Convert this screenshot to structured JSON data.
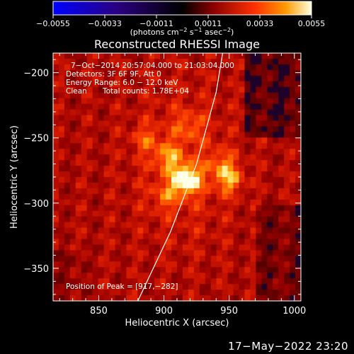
{
  "chart_data": {
    "type": "heatmap",
    "title": "Reconstructed RHESSI Image",
    "xlabel": "Heliocentric X (arcsec)",
    "ylabel": "Heliocentric Y (arcsec)",
    "xlim": [
      815,
      1005
    ],
    "ylim": [
      -375,
      -185
    ],
    "x_ticks": [
      850,
      900,
      950,
      1000
    ],
    "y_ticks": [
      -200,
      -250,
      -300,
      -350
    ],
    "x_tick_labels": [
      "850",
      "900",
      "950",
      "1000"
    ],
    "y_tick_labels": [
      "−200",
      "−250",
      "−300",
      "−350"
    ],
    "colorbar": {
      "label": "(photons cm⁻² s⁻¹ asec⁻²)",
      "label_main": "(photons cm",
      "label_sup1": "−2",
      "label_mid1": " s",
      "label_sup2": "−1",
      "label_mid2": " asec",
      "label_sup3": "−2",
      "label_end": ")",
      "range": [
        -0.0055,
        0.0055
      ],
      "ticks": [
        -0.0055,
        -0.0033,
        -0.0011,
        0.0011,
        0.0033,
        0.0055
      ],
      "tick_labels": [
        "−0.0055",
        "−0.0033",
        "−0.0011",
        "0.0011",
        "0.0033",
        "0.0055"
      ],
      "colors": [
        "#0000ff",
        "#2a0080",
        "#000000",
        "#8b0000",
        "#ff3000",
        "#ff9a00",
        "#ffffe0"
      ]
    },
    "annotations": {
      "time_range": "7−Oct−2014 20:57:04.000 to 21:03:04.000",
      "detectors": "Detectors: 3F 6F 9F, Att 0",
      "energy": "Energy Range: 6.0 − 12.0 keV",
      "method": "Clean",
      "counts": "Total counts: 1.78E+04",
      "peak": "Position of Peak = [917,−282]"
    },
    "peak": [
      917,
      -282
    ],
    "sources": [
      {
        "x": 917,
        "y": -282,
        "intensity": 1.0
      },
      {
        "x": 950,
        "y": -282,
        "intensity": 0.55
      },
      {
        "x": 903,
        "y": -265,
        "intensity": 0.45
      },
      {
        "x": 886,
        "y": -251,
        "intensity": 0.3
      },
      {
        "x": 919,
        "y": -241,
        "intensity": 0.3
      },
      {
        "x": 944,
        "y": -270,
        "intensity": 0.35
      },
      {
        "x": 901,
        "y": -295,
        "intensity": 0.3
      }
    ],
    "limb_curve": [
      [
        880,
        -375
      ],
      [
        905,
        -322
      ],
      [
        925,
        -270
      ],
      [
        940,
        -215
      ],
      [
        945,
        -185
      ]
    ]
  },
  "footer": {
    "timestamp": "17−May−2022 23:20"
  }
}
